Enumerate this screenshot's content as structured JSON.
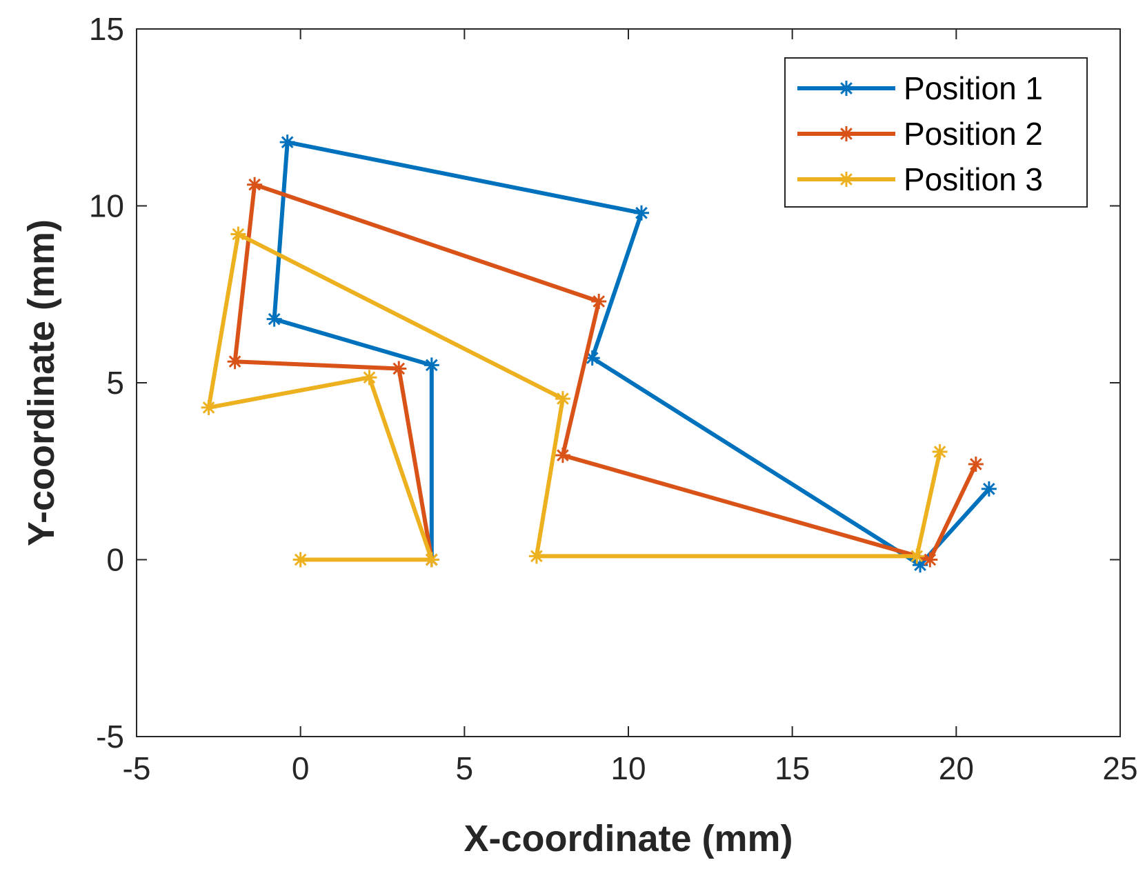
{
  "chart_data": {
    "type": "line",
    "title": "",
    "xlabel": "X-coordinate (mm)",
    "ylabel": "Y-coordinate (mm)",
    "xlim": [
      -5,
      25
    ],
    "ylim": [
      -5,
      15
    ],
    "xticks": [
      -5,
      0,
      5,
      10,
      15,
      20,
      25
    ],
    "yticks": [
      -5,
      0,
      5,
      10,
      15
    ],
    "xtick_labels": [
      "-5",
      "0",
      "5",
      "10",
      "15",
      "20",
      "25"
    ],
    "ytick_labels": [
      "-5",
      "0",
      "5",
      "10",
      "15"
    ],
    "grid": false,
    "legend_position": "top-right",
    "series": [
      {
        "name": "Position 1",
        "color": "#0072BD",
        "marker": "asterisk",
        "x": [
          4,
          4,
          -0.8,
          -0.4,
          10.4,
          8.9,
          18.9,
          21
        ],
        "y": [
          0,
          5.5,
          6.8,
          11.8,
          9.8,
          5.7,
          -0.15,
          2
        ]
      },
      {
        "name": "Position 2",
        "color": "#D95319",
        "marker": "asterisk",
        "x": [
          4,
          3,
          -2,
          -1.4,
          9.1,
          8,
          19.2,
          20.6
        ],
        "y": [
          0,
          5.4,
          5.6,
          10.6,
          7.3,
          2.95,
          0,
          2.7
        ]
      },
      {
        "name": "Position 3",
        "color": "#EDB120",
        "marker": "asterisk",
        "x": [
          0,
          4,
          2.1,
          -2.8,
          -1.9,
          8,
          7.2,
          18.8,
          19.5
        ],
        "y": [
          0,
          0,
          5.15,
          4.3,
          9.2,
          4.55,
          0.1,
          0.1,
          3.05
        ]
      }
    ]
  }
}
